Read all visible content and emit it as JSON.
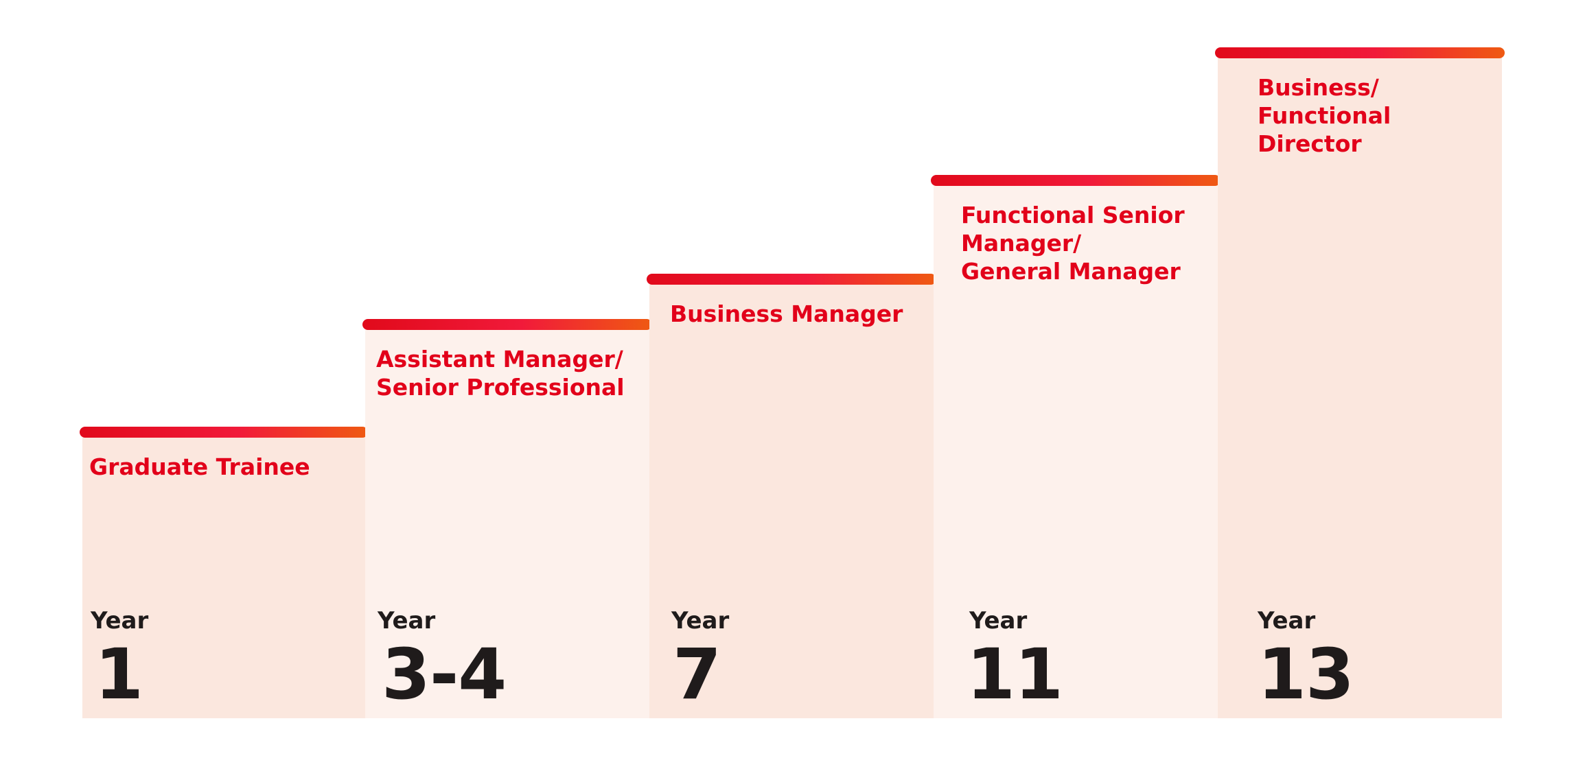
{
  "steps": [
    {
      "title": "Graduate Trainee",
      "year_label": "Year",
      "year_value": "1"
    },
    {
      "title": "Assistant Manager/\nSenior Professional",
      "year_label": "Year",
      "year_value": "3-4"
    },
    {
      "title": "Business Manager",
      "year_label": "Year",
      "year_value": "7"
    },
    {
      "title": "Functional Senior\nManager/\nGeneral Manager",
      "year_label": "Year",
      "year_value": "11"
    },
    {
      "title": "Business/\nFunctional Director",
      "year_label": "Year",
      "year_value": "13"
    }
  ],
  "colors": {
    "title": "#e2001a",
    "text_dark": "#1f1b1b",
    "bar_start": "#e10a1b",
    "bar_end": "#ef5a12",
    "fill_dark": "#fbe7de",
    "fill_light": "#fdf1ec"
  }
}
